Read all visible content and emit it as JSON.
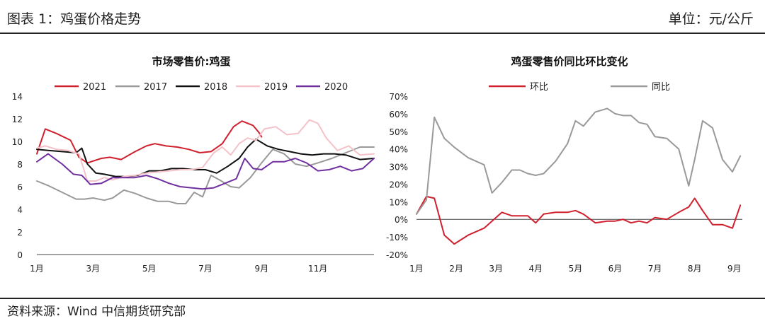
{
  "header": {
    "title": "图表 1：鸡蛋价格走势",
    "unit": "单位：元/公斤"
  },
  "footer": {
    "source": "资料来源：Wind  中信期货研究部"
  },
  "chart_data": [
    {
      "type": "line",
      "title": "市场零售价:鸡蛋",
      "ylim": [
        0,
        14
      ],
      "yticks": [
        0,
        2,
        4,
        6,
        8,
        10,
        12,
        14
      ],
      "xlim": [
        1,
        13
      ],
      "xticks": [
        {
          "x": 1,
          "label": "1月"
        },
        {
          "x": 3,
          "label": "3月"
        },
        {
          "x": 5,
          "label": "5月"
        },
        {
          "x": 7,
          "label": "7月"
        },
        {
          "x": 9,
          "label": "9月"
        },
        {
          "x": 11,
          "label": "11月"
        }
      ],
      "legend_position": "top",
      "series": [
        {
          "name": "2021",
          "color": "#d0202e",
          "width": 2,
          "x": [
            1,
            1.3,
            1.7,
            2.2,
            2.5,
            2.8,
            3.3,
            3.6,
            4,
            4.5,
            4.9,
            5.2,
            5.6,
            6,
            6.4,
            6.8,
            7.2,
            7.6,
            8,
            8.3,
            8.7,
            8.9,
            9
          ],
          "y": [
            8.9,
            11.1,
            10.7,
            10.1,
            8.6,
            8.1,
            8.5,
            8.6,
            8.4,
            9.1,
            9.6,
            9.8,
            9.6,
            9.5,
            9.3,
            9.0,
            9.1,
            9.8,
            11.3,
            11.8,
            11.4,
            10.8,
            10.4
          ]
        },
        {
          "name": "2017",
          "color": "#999999",
          "width": 2,
          "x": [
            1,
            1.4,
            1.9,
            2.4,
            2.7,
            3,
            3.4,
            3.7,
            4.1,
            4.5,
            4.9,
            5.3,
            5.7,
            6,
            6.3,
            6.6,
            6.9,
            7.2,
            7.5,
            7.9,
            8.2,
            8.6,
            9,
            9.4,
            9.8,
            10.2,
            10.6,
            11,
            11.5,
            12,
            12.5,
            13
          ],
          "y": [
            6.5,
            6.1,
            5.5,
            4.9,
            4.9,
            5.0,
            4.8,
            5.0,
            5.7,
            5.4,
            5.0,
            4.7,
            4.7,
            4.5,
            4.5,
            5.5,
            5.1,
            7.0,
            6.6,
            6.0,
            5.9,
            6.8,
            8.1,
            9.3,
            8.9,
            8.0,
            7.8,
            8.1,
            8.5,
            9.0,
            9.5,
            9.5
          ]
        },
        {
          "name": "2018",
          "color": "#111111",
          "width": 2,
          "x": [
            1,
            1.4,
            1.9,
            2.4,
            2.6,
            2.8,
            3.1,
            3.4,
            3.8,
            4.2,
            4.6,
            5,
            5.4,
            5.8,
            6.2,
            6.6,
            7,
            7.4,
            7.8,
            8.2,
            8.5,
            8.8,
            9.2,
            9.6,
            10,
            10.4,
            10.8,
            11.2,
            11.6,
            12,
            12.5,
            13
          ],
          "y": [
            9.3,
            9.2,
            9.1,
            9.0,
            9.4,
            8.0,
            7.2,
            7.1,
            6.9,
            6.9,
            7.0,
            7.4,
            7.4,
            7.6,
            7.6,
            7.5,
            7.5,
            7.2,
            7.8,
            8.5,
            9.5,
            10.2,
            9.6,
            9.3,
            9.1,
            8.9,
            8.8,
            8.9,
            8.9,
            8.8,
            8.4,
            8.5
          ]
        },
        {
          "name": "2019",
          "color": "#f4c2c8",
          "width": 2,
          "x": [
            1,
            1.3,
            1.7,
            2.1,
            2.5,
            2.8,
            3.1,
            3.4,
            3.7,
            4.1,
            4.5,
            4.9,
            5.3,
            5.7,
            6.1,
            6.5,
            6.9,
            7.3,
            7.6,
            7.9,
            8.2,
            8.5,
            8.8,
            9.1,
            9.5,
            9.9,
            10.3,
            10.7,
            11,
            11.3,
            11.7,
            12.1,
            12.5,
            13
          ],
          "y": [
            9.4,
            9.6,
            9.3,
            9.2,
            8.9,
            6.5,
            6.5,
            6.8,
            6.6,
            6.9,
            7.0,
            7.2,
            7.3,
            7.4,
            7.5,
            7.5,
            7.7,
            9.0,
            9.5,
            8.8,
            9.8,
            10.3,
            10.1,
            11.1,
            11.3,
            10.6,
            10.7,
            11.9,
            11.6,
            10.3,
            9.2,
            9.6,
            8.8,
            8.9
          ]
        },
        {
          "name": "2020",
          "color": "#7030a0",
          "width": 2,
          "x": [
            1,
            1.4,
            1.9,
            2.3,
            2.6,
            2.9,
            3.3,
            3.7,
            4.1,
            4.5,
            4.9,
            5.3,
            5.7,
            6.1,
            6.5,
            6.9,
            7.3,
            7.7,
            8.1,
            8.4,
            8.7,
            9,
            9.4,
            9.8,
            10.2,
            10.6,
            11,
            11.4,
            11.8,
            12.2,
            12.6,
            13
          ],
          "y": [
            8.2,
            8.9,
            8.0,
            7.1,
            7.0,
            6.2,
            6.3,
            6.8,
            6.8,
            6.8,
            7.0,
            6.7,
            6.3,
            6.0,
            5.9,
            5.8,
            5.9,
            6.3,
            6.7,
            8.5,
            7.6,
            7.5,
            8.2,
            8.2,
            8.5,
            8.1,
            7.4,
            7.5,
            7.8,
            7.4,
            7.6,
            8.5
          ]
        }
      ]
    },
    {
      "type": "line",
      "title": "鸡蛋零售价同比环比变化",
      "ylim": [
        -20,
        70
      ],
      "yticks": [
        -20,
        -10,
        0,
        10,
        20,
        30,
        40,
        50,
        60,
        70
      ],
      "ytick_suffix": "%",
      "xlim": [
        1,
        9.2
      ],
      "xticks": [
        {
          "x": 1,
          "label": "1月"
        },
        {
          "x": 2,
          "label": "2月"
        },
        {
          "x": 3,
          "label": "3月"
        },
        {
          "x": 4,
          "label": "4月"
        },
        {
          "x": 5,
          "label": "5月"
        },
        {
          "x": 6,
          "label": "6月"
        },
        {
          "x": 7,
          "label": "7月"
        },
        {
          "x": 8,
          "label": "8月"
        },
        {
          "x": 9,
          "label": "9月"
        }
      ],
      "legend_position": "top",
      "series": [
        {
          "name": "环比",
          "color": "#d0202e",
          "width": 2,
          "x": [
            1,
            1.25,
            1.45,
            1.7,
            1.95,
            2.3,
            2.7,
            2.9,
            3.15,
            3.4,
            3.6,
            3.8,
            4.0,
            4.2,
            4.5,
            4.8,
            5.0,
            5.2,
            5.5,
            5.8,
            6.0,
            6.2,
            6.4,
            6.6,
            6.8,
            7.0,
            7.3,
            7.6,
            7.85,
            8.0,
            8.2,
            8.45,
            8.7,
            8.95,
            9.15
          ],
          "y": [
            3,
            13,
            12,
            -9,
            -14,
            -9,
            -5,
            -1,
            4,
            2,
            2,
            2,
            -2,
            3,
            4,
            4,
            5,
            3,
            -2,
            -1,
            -1,
            0,
            -2,
            -1,
            -2,
            1,
            0,
            4,
            7,
            12,
            5,
            -3,
            -3,
            -5,
            8
          ]
        },
        {
          "name": "同比",
          "color": "#999999",
          "width": 2,
          "x": [
            1,
            1.25,
            1.45,
            1.7,
            1.95,
            2.3,
            2.7,
            2.9,
            3.15,
            3.4,
            3.6,
            3.8,
            4.0,
            4.2,
            4.5,
            4.8,
            5.0,
            5.2,
            5.5,
            5.8,
            6.0,
            6.2,
            6.4,
            6.6,
            6.8,
            7.0,
            7.3,
            7.6,
            7.85,
            8.0,
            8.2,
            8.45,
            8.7,
            8.95,
            9.15
          ],
          "y": [
            3,
            11,
            58,
            46,
            41,
            35,
            31,
            15,
            21,
            28,
            28,
            26,
            25,
            26,
            33,
            43,
            56,
            53,
            61,
            63,
            60,
            59,
            59,
            55,
            54,
            47,
            46,
            40,
            19,
            34,
            56,
            52,
            34,
            27,
            36
          ]
        }
      ]
    }
  ]
}
